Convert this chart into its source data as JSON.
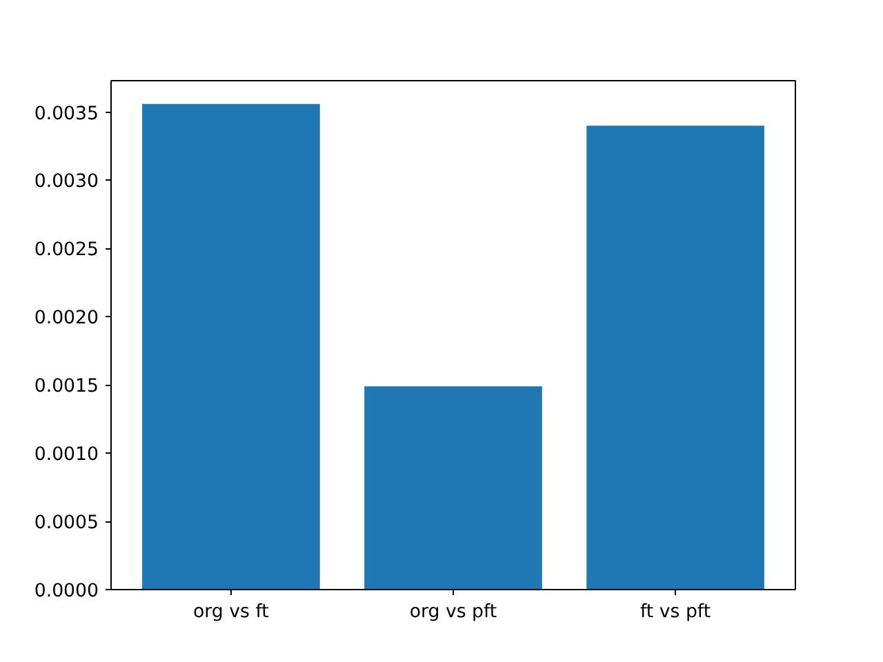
{
  "chart_data": {
    "type": "bar",
    "categories": [
      "org vs ft",
      "org vs pft",
      "ft vs pft"
    ],
    "values": [
      0.00356,
      0.00149,
      0.0034
    ],
    "color": "#1f77b4",
    "ylim": [
      0,
      0.00373
    ],
    "yticks": [
      {
        "value": 0,
        "label": "0.0000"
      },
      {
        "value": 0.0005,
        "label": "0.0005"
      },
      {
        "value": 0.001,
        "label": "0.0010"
      },
      {
        "value": 0.0015,
        "label": "0.0015"
      },
      {
        "value": 0.002,
        "label": "0.0020"
      },
      {
        "value": 0.0025,
        "label": "0.0025"
      },
      {
        "value": 0.003,
        "label": "0.0030"
      },
      {
        "value": 0.0035,
        "label": "0.0035"
      }
    ],
    "grid": false
  }
}
